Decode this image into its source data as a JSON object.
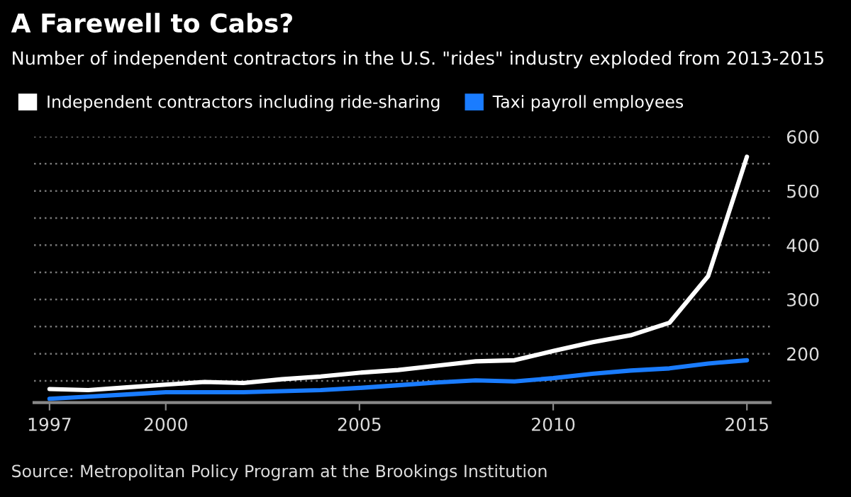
{
  "chart_data": {
    "type": "line",
    "title": "A Farewell to Cabs?",
    "subtitle": "Number of independent contractors in the U.S. \"rides\" industry exploded from 2013-2015",
    "x": [
      1997,
      1998,
      1999,
      2000,
      2001,
      2002,
      2003,
      2004,
      2005,
      2006,
      2007,
      2008,
      2009,
      2010,
      2011,
      2012,
      2013,
      2014,
      2015
    ],
    "series": [
      {
        "name": "Independent contractors including ride-sharing",
        "color": "#ffffff",
        "values": [
          135,
          133,
          138,
          143,
          148,
          146,
          153,
          158,
          165,
          170,
          178,
          186,
          188,
          205,
          221,
          234,
          257,
          343,
          563
        ]
      },
      {
        "name": "Taxi payroll employees",
        "color": "#1a7cff",
        "values": [
          117,
          121,
          125,
          129,
          129,
          129,
          131,
          133,
          137,
          142,
          147,
          151,
          149,
          155,
          163,
          169,
          173,
          182,
          188
        ]
      }
    ],
    "xlim": [
      1996.6,
      2015.6
    ],
    "xticks": [
      1997,
      2000,
      2005,
      2010,
      2015
    ],
    "ylim": [
      110,
      600
    ],
    "yticks": [
      {
        "value": 150,
        "label": null
      },
      200,
      {
        "value": 250,
        "label": null
      },
      300,
      {
        "value": 350,
        "label": null
      },
      400,
      {
        "value": 450,
        "label": null
      },
      500,
      {
        "value": 550,
        "label": null
      },
      600
    ],
    "grid": "y",
    "legend": "top left",
    "marker": "none",
    "line_style": "solid",
    "annotations": [
      "Source: Metropolitan Policy Program at the Brookings Institution"
    ]
  }
}
